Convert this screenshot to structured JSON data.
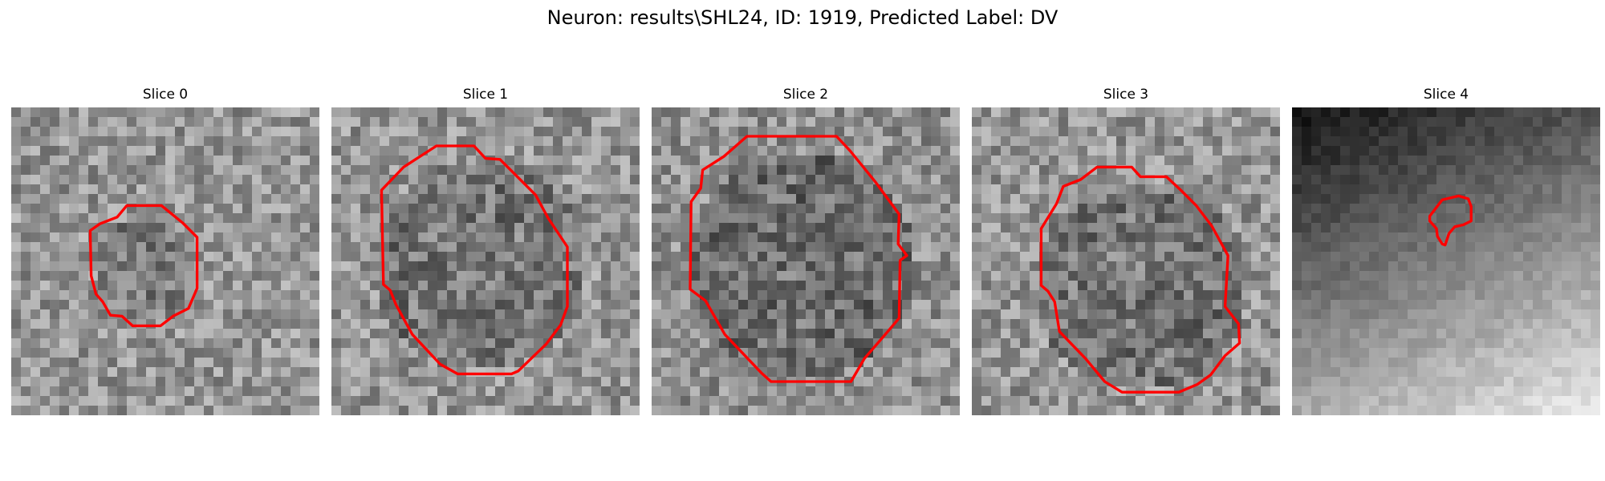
{
  "figure": {
    "title": "Neuron: results\\SHL24, ID: 1919, Predicted Label: DV"
  },
  "colors": {
    "roi_outline": "#ff0000",
    "background": "#ffffff"
  },
  "slices": [
    {
      "label": "Slice 0"
    },
    {
      "label": "Slice 1"
    },
    {
      "label": "Slice 2"
    },
    {
      "label": "Slice 3"
    },
    {
      "label": "Slice 4"
    }
  ]
}
